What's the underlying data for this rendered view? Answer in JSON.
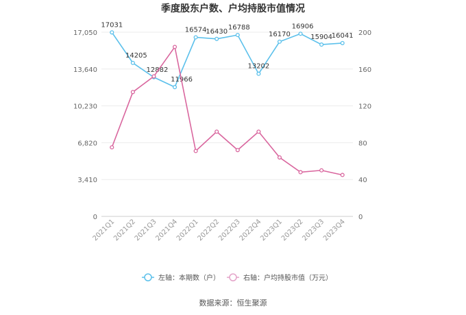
{
  "chart_data": {
    "type": "line",
    "title": "季度股东户数、户均持股市值情况",
    "categories": [
      "2021Q1",
      "2021Q2",
      "2021Q3",
      "2021Q4",
      "2022Q1",
      "2022Q2",
      "2022Q3",
      "2022Q4",
      "2023Q1",
      "2023Q2",
      "2023Q3",
      "2023Q4"
    ],
    "series": [
      {
        "name": "左轴：本期数（户）",
        "axis": "left",
        "color": "#5bc0eb",
        "values": [
          17031,
          14205,
          12882,
          11966,
          16574,
          16430,
          16788,
          13202,
          16170,
          16906,
          15904,
          16041
        ],
        "labels": [
          "17031",
          "14205",
          "12882",
          "11966",
          "16574",
          "16430",
          "16788",
          "13202",
          "16170",
          "16906",
          "15904",
          "16041"
        ]
      },
      {
        "name": "右轴：户均持股市值（万元）",
        "axis": "right",
        "color": "#d9669e",
        "values": [
          75,
          135,
          152,
          184,
          71,
          92,
          72,
          92,
          64,
          48,
          50,
          45
        ]
      }
    ],
    "left_axis": {
      "min": 0,
      "max": 17050,
      "ticks": [
        0,
        3410,
        6820,
        10230,
        13640,
        17050
      ],
      "tick_labels": [
        "0",
        "3,410",
        "6,820",
        "10,230",
        "13,640",
        "17,050"
      ]
    },
    "right_axis": {
      "min": 0,
      "max": 200,
      "ticks": [
        0,
        40,
        80,
        120,
        160,
        200
      ],
      "tick_labels": [
        "0",
        "40",
        "80",
        "120",
        "160",
        "200"
      ]
    },
    "grid": true,
    "legend_position": "bottom"
  },
  "footer": {
    "source": "数据来源：恒生聚源"
  }
}
